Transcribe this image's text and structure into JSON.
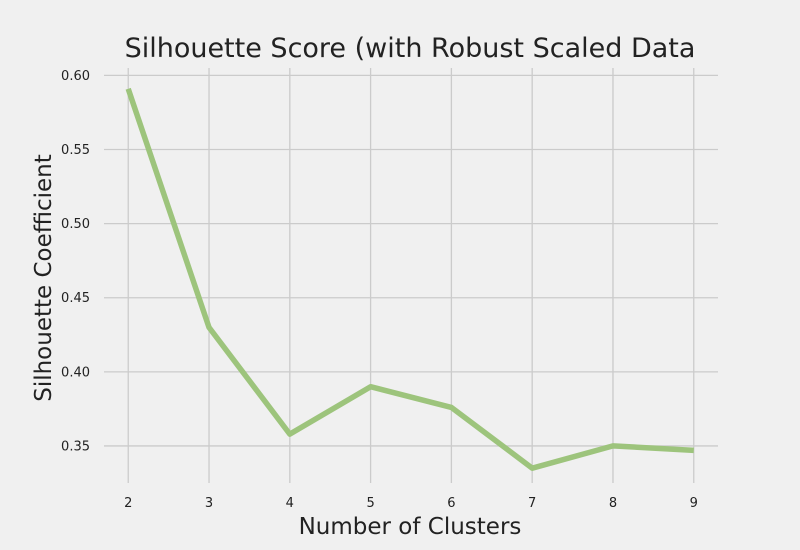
{
  "chart_data": {
    "type": "line",
    "title": "Silhouette Score (with Robust Scaled Data",
    "xlabel": "Number of Clusters",
    "ylabel": "Silhouette Coefficient",
    "x": [
      2,
      3,
      4,
      5,
      6,
      7,
      8,
      9
    ],
    "xticks": [
      "2",
      "3",
      "4",
      "5",
      "6",
      "7",
      "8",
      "9"
    ],
    "yticks": [
      "0.35",
      "0.40",
      "0.45",
      "0.50",
      "0.55",
      "0.60"
    ],
    "ytick_values": [
      0.35,
      0.4,
      0.45,
      0.5,
      0.55,
      0.6
    ],
    "xlim": [
      1.7,
      9.3
    ],
    "ylim": [
      0.325,
      0.605
    ],
    "grid": true,
    "series": [
      {
        "values": [
          0.591,
          0.43,
          0.358,
          0.39,
          0.376,
          0.335,
          0.35,
          0.347
        ],
        "color": "#9dc47c"
      }
    ],
    "background": "#f0f0f0"
  }
}
